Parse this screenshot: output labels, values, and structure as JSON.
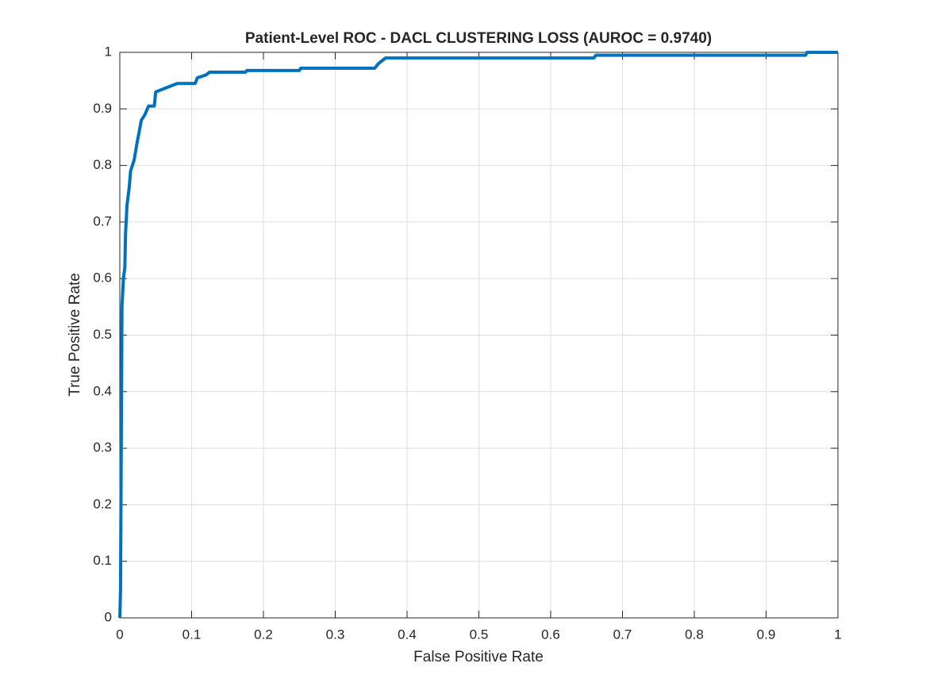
{
  "chart_data": {
    "type": "line",
    "title": "Patient-Level ROC - DACL CLUSTERING LOSS (AUROC = 0.9740)",
    "x_label": "False Positive Rate",
    "y_label": "True Positive Rate",
    "x": [
      0,
      0.001,
      0.002,
      0.003,
      0.005,
      0.007,
      0.008,
      0.01,
      0.013,
      0.015,
      0.02,
      0.024,
      0.027,
      0.03,
      0.035,
      0.04,
      0.048,
      0.05,
      0.06,
      0.07,
      0.08,
      0.105,
      0.108,
      0.12,
      0.125,
      0.175,
      0.177,
      0.25,
      0.252,
      0.355,
      0.36,
      0.37,
      0.66,
      0.663,
      0.955,
      0.957,
      1
    ],
    "series": [
      {
        "name": "ROC",
        "color": "#0072bd",
        "values": [
          0,
          0.05,
          0.3,
          0.55,
          0.6,
          0.62,
          0.68,
          0.73,
          0.76,
          0.79,
          0.81,
          0.84,
          0.86,
          0.88,
          0.89,
          0.905,
          0.905,
          0.93,
          0.935,
          0.94,
          0.945,
          0.945,
          0.955,
          0.96,
          0.965,
          0.965,
          0.968,
          0.968,
          0.972,
          0.972,
          0.98,
          0.99,
          0.99,
          0.995,
          0.995,
          1,
          1
        ]
      }
    ],
    "xlim": [
      0,
      1
    ],
    "ylim": [
      0,
      1
    ],
    "xticks": [
      0,
      0.1,
      0.2,
      0.3,
      0.4,
      0.5,
      0.6,
      0.7,
      0.8,
      0.9,
      1
    ],
    "yticks": [
      0,
      0.1,
      0.2,
      0.3,
      0.4,
      0.5,
      0.6,
      0.7,
      0.8,
      0.9,
      1
    ],
    "grid": true
  }
}
